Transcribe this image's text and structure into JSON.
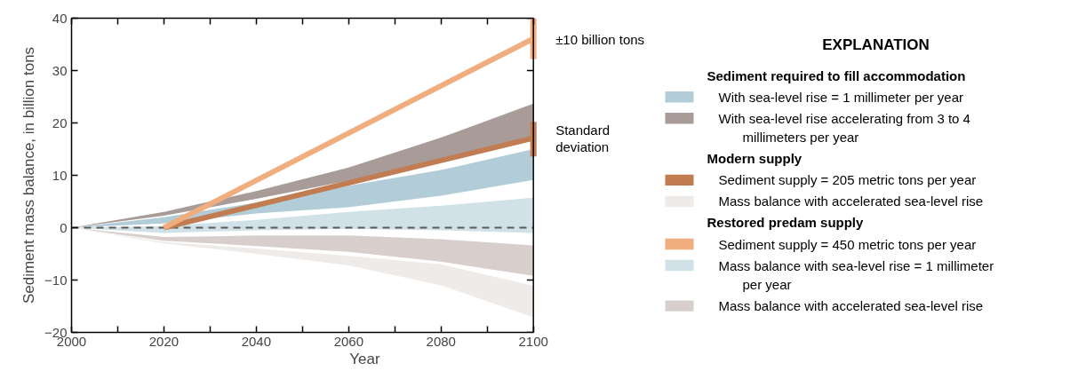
{
  "chart_data": {
    "type": "line",
    "xlabel": "Year",
    "ylabel": "Sediment mass balance, in billion tons",
    "legend_title": "EXPLANATION",
    "xlim": [
      2000,
      2100
    ],
    "ylim": [
      -20,
      40
    ],
    "xticks": [
      2000,
      {
        "value": 2010,
        "label": null
      },
      2020,
      {
        "value": 2030,
        "label": null
      },
      2040,
      {
        "value": 2050,
        "label": null
      },
      2060,
      {
        "value": 2070,
        "label": null
      },
      2080,
      {
        "value": 2090,
        "label": null
      },
      2100
    ],
    "yticks": [
      -20,
      -10,
      0,
      10,
      20,
      30,
      40
    ],
    "grid": false,
    "legend": "right",
    "ref_lines": [
      {
        "axis": "y",
        "value": 0,
        "line_style": "dashed",
        "color": "#5a5a5a"
      }
    ],
    "annotations": [
      "Sediment required to fill accommodation",
      "Modern supply",
      "Restored predam supply",
      {
        "text": "±10 billion tons",
        "x": 2100,
        "y": 36
      },
      {
        "text": "Standard deviation",
        "x": 2100,
        "y": 17
      }
    ],
    "series": [
      {
        "name": "With sea-level rise = 1 millimeter per year",
        "color": "#b3cdd8",
        "x": [
          2000,
          2020,
          2040,
          2060,
          2080,
          2100
        ],
        "lower": [
          0,
          0.8,
          2.7,
          3.9,
          6.1,
          9.1
        ],
        "upper": [
          0,
          2.0,
          4.8,
          8.0,
          11.0,
          15.0
        ],
        "values": [
          null,
          null,
          null,
          null,
          null,
          null
        ]
      },
      {
        "name": "With sea-level rise accelerating from 3 to 4 millimeters per year",
        "color": "#a89b98",
        "x": [
          2000,
          2020,
          2040,
          2060,
          2080,
          2100
        ],
        "lower": [
          0,
          2.3,
          5.5,
          9.0,
          13.0,
          17.5
        ],
        "upper": [
          0,
          3.0,
          7.0,
          11.5,
          17.2,
          23.7
        ],
        "values": [
          null,
          null,
          null,
          null,
          null,
          null
        ]
      },
      {
        "name": "Sediment supply = 205 metric tons per year",
        "color": "#c17c52",
        "x": [
          2020,
          2100
        ],
        "values": [
          0,
          17.1
        ],
        "errors": [
          null,
          [
            13.6,
            20.2
          ]
        ]
      },
      {
        "name": "Mass balance with accelerated sea-level rise",
        "color": "#efebe8",
        "x": [
          2000,
          2020,
          2040,
          2060,
          2080,
          2100
        ],
        "lower": [
          0,
          -3.0,
          -5.0,
          -7.2,
          -11.0,
          -17.1
        ],
        "upper": [
          0,
          -2.7,
          -4.0,
          -5.4,
          -7.0,
          -11.1
        ],
        "values": [
          null,
          null,
          null,
          null,
          null,
          null
        ]
      },
      {
        "name": "Sediment supply = 450 metric tons per year",
        "color": "#f0ad7e",
        "x": [
          2020,
          2100
        ],
        "values": [
          0,
          36.1
        ],
        "errors": [
          null,
          [
            32.2,
            40
          ]
        ]
      },
      {
        "name": "Mass balance with sea-level rise = 1 millimeter per year",
        "color": "#d0e1e8",
        "x": [
          2000,
          2020,
          2040,
          2060,
          2080,
          2100
        ],
        "lower": [
          0,
          -1.0,
          -0.5,
          -0.2,
          -0.5,
          -1.0
        ],
        "upper": [
          0,
          0.3,
          1.5,
          3.0,
          4.2,
          5.7
        ],
        "values": [
          null,
          null,
          null,
          null,
          null,
          null
        ]
      },
      {
        "name": "Mass balance with accelerated sea-level rise",
        "color": "#d8cfcd",
        "x": [
          2000,
          2020,
          2040,
          2060,
          2080,
          2100
        ],
        "lower": [
          0,
          -2.5,
          -3.5,
          -4.6,
          -6.5,
          -9.2
        ],
        "upper": [
          0,
          -1.8,
          -1.5,
          -1.5,
          -2.2,
          -3.4
        ],
        "values": [
          null,
          null,
          null,
          null,
          null,
          null
        ]
      }
    ]
  }
}
